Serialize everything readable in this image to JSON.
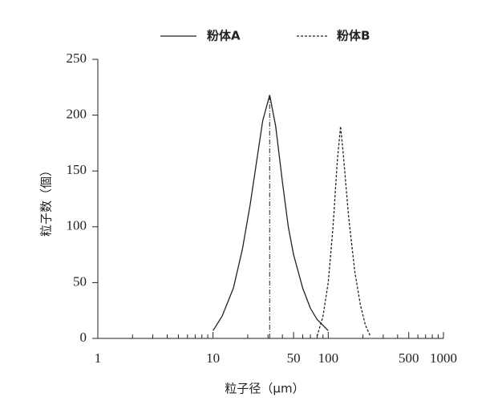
{
  "chart_data": {
    "type": "line",
    "x_scale": "log",
    "x_label": "粒子径（μm）",
    "y_label": "粒子数（個）",
    "xlim": [
      1,
      1000
    ],
    "xticks": [
      1,
      10,
      50,
      100,
      500,
      1000
    ],
    "xminorticks": [
      2,
      3,
      4,
      5,
      6,
      7,
      8,
      9,
      20,
      30,
      40,
      60,
      70,
      80,
      90,
      200,
      300,
      400,
      600,
      700,
      800,
      900
    ],
    "ylim": [
      0,
      250
    ],
    "yticks": [
      0,
      50,
      100,
      150,
      200,
      250
    ],
    "legend": "top",
    "peak_marker_x": 31,
    "series": [
      {
        "name": "粉体A",
        "color": "#222222",
        "dash": "solid",
        "x": [
          10,
          12,
          15,
          18,
          21,
          24,
          27,
          31,
          35,
          40,
          45,
          50,
          60,
          70,
          80,
          100
        ],
        "values": [
          7,
          20,
          45,
          80,
          120,
          160,
          195,
          218,
          190,
          140,
          100,
          75,
          45,
          27,
          17,
          7
        ]
      },
      {
        "name": "粉体B",
        "color": "#222222",
        "dash": "dashed",
        "x": [
          80,
          90,
          100,
          110,
          120,
          128,
          135,
          150,
          170,
          190,
          210,
          232
        ],
        "values": [
          2,
          20,
          50,
          100,
          160,
          190,
          165,
          110,
          60,
          30,
          12,
          2
        ]
      }
    ]
  }
}
